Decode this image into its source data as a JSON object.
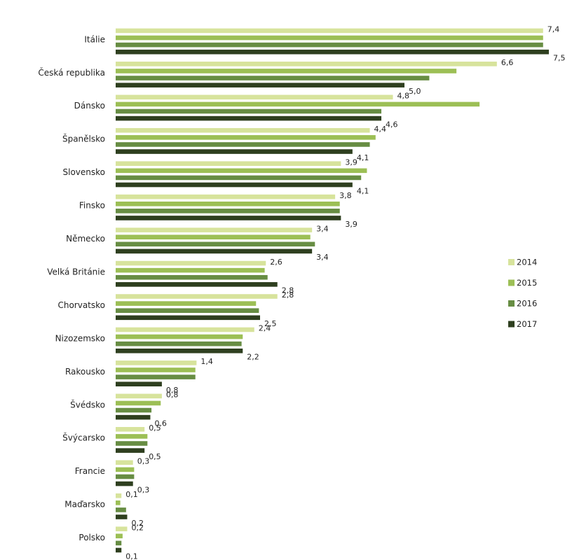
{
  "chart_data": {
    "type": "bar",
    "orientation": "horizontal",
    "grid": false,
    "legend_position": "right",
    "categories": [
      "Itálie",
      "Česká republika",
      "Dánsko",
      "Španělsko",
      "Slovensko",
      "Finsko",
      "Německo",
      "Velká Británie",
      "Chorvatsko",
      "Nizozemsko",
      "Rakousko",
      "Švédsko",
      "Švýcarsko",
      "Francie",
      "Maďarsko",
      "Polsko"
    ],
    "series": [
      {
        "name": "2014",
        "color": "#d7e39c",
        "values": [
          7.4,
          6.6,
          4.8,
          4.4,
          3.9,
          3.8,
          3.4,
          2.6,
          2.8,
          2.4,
          1.4,
          0.8,
          0.5,
          0.3,
          0.1,
          0.2
        ]
      },
      {
        "name": "2015",
        "color": "#9cbf55",
        "values": [
          7.4,
          5.9,
          6.3,
          4.5,
          4.35,
          3.88,
          3.37,
          2.58,
          2.43,
          2.2,
          1.38,
          0.78,
          0.55,
          0.32,
          0.08,
          0.12
        ]
      },
      {
        "name": "2016",
        "color": "#678d43",
        "values": [
          7.4,
          5.43,
          4.6,
          4.4,
          4.25,
          3.88,
          3.45,
          2.63,
          2.48,
          2.18,
          1.38,
          0.62,
          0.55,
          0.32,
          0.18,
          0.1
        ]
      },
      {
        "name": "2017",
        "color": "#2e3f1f",
        "values": [
          7.5,
          5.0,
          4.6,
          4.1,
          4.1,
          3.9,
          3.4,
          2.8,
          2.5,
          2.2,
          0.8,
          0.6,
          0.5,
          0.3,
          0.2,
          0.1
        ]
      }
    ],
    "data_labels": {
      "2014": [
        "7,4",
        "6,6",
        "4,8",
        "4,4",
        "3,9",
        "3,8",
        "3,4",
        "2,6",
        "2,8",
        "2,4",
        "1,4",
        "0,8",
        "0,5",
        "0,3",
        "0,1",
        "0,2"
      ],
      "2017": [
        "7,5",
        "5,0",
        "4,6",
        "4,1",
        "4,1",
        "3,9",
        "3,4",
        "2,8",
        "2,5",
        "2,2",
        "0,8",
        "0,6",
        "0,5",
        "0,3",
        "0,2",
        "0,1"
      ]
    },
    "xlim": [
      0,
      7.6
    ]
  }
}
